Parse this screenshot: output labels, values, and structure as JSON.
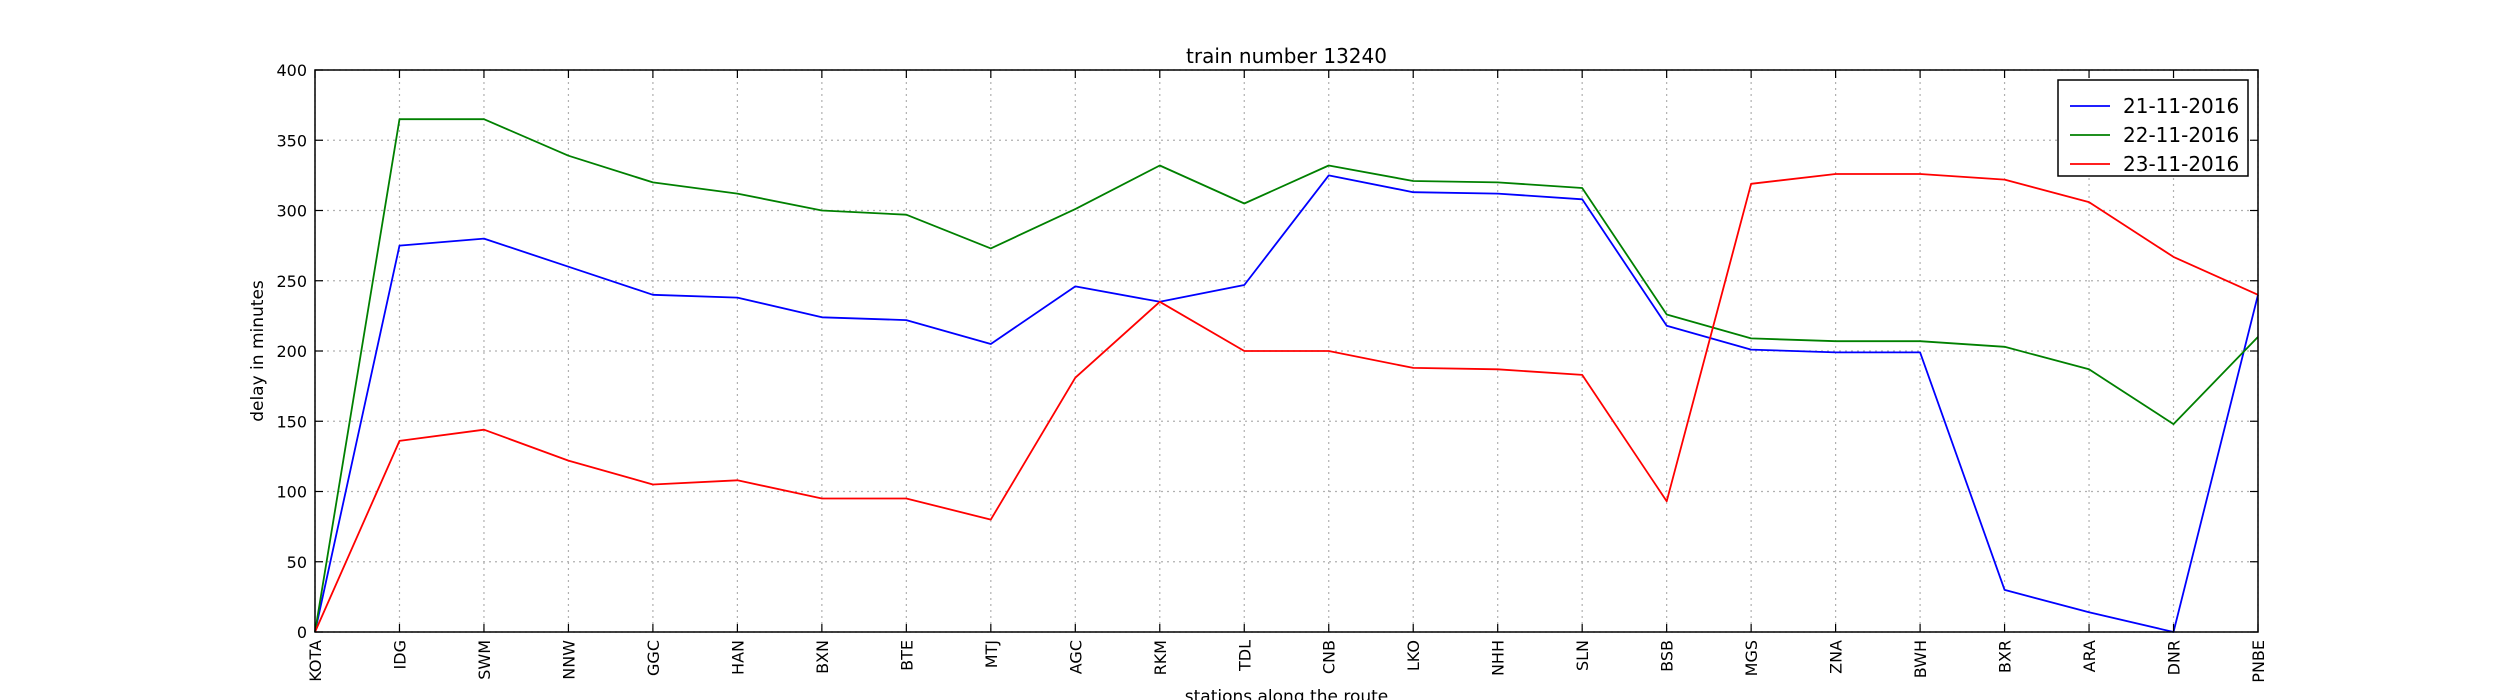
{
  "chart_data": {
    "type": "line",
    "title": "train number 13240",
    "xlabel": "stations along the route",
    "ylabel": "delay in minutes",
    "categories": [
      "KOTA",
      "IDG",
      "SWM",
      "NNW",
      "GGC",
      "HAN",
      "BXN",
      "BTE",
      "MTJ",
      "AGC",
      "RKM",
      "TDL",
      "CNB",
      "LKO",
      "NHH",
      "SLN",
      "BSB",
      "MGS",
      "ZNA",
      "BWH",
      "BXR",
      "ARA",
      "DNR",
      "PNBE"
    ],
    "ylim": [
      0,
      400
    ],
    "yticks": [
      0,
      50,
      100,
      150,
      200,
      250,
      300,
      350,
      400
    ],
    "grid": true,
    "legend_position": "top-right",
    "series": [
      {
        "name": "21-11-2016",
        "color": "#0000ff",
        "values": [
          0,
          275,
          280,
          260,
          240,
          238,
          224,
          222,
          205,
          246,
          235,
          247,
          325,
          313,
          312,
          308,
          218,
          201,
          199,
          199,
          30,
          14,
          0,
          240
        ]
      },
      {
        "name": "22-11-2016",
        "color": "#008000",
        "values": [
          0,
          365,
          365,
          339,
          320,
          312,
          300,
          297,
          273,
          301,
          332,
          305,
          332,
          321,
          320,
          316,
          226,
          209,
          207,
          207,
          203,
          187,
          148,
          210
        ]
      },
      {
        "name": "23-11-2016",
        "color": "#ff0000",
        "values": [
          0,
          136,
          144,
          122,
          105,
          108,
          95,
          95,
          80,
          181,
          235,
          200,
          200,
          188,
          187,
          183,
          93,
          319,
          326,
          326,
          322,
          306,
          267,
          240
        ]
      }
    ]
  }
}
